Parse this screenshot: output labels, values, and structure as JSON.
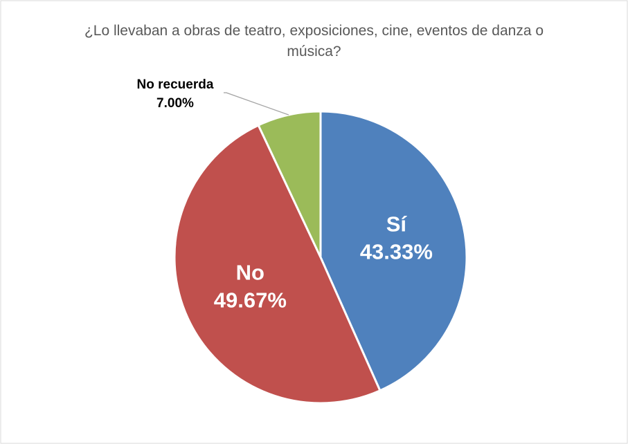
{
  "chart_data": {
    "type": "pie",
    "title": "¿Lo llevaban a obras de teatro, exposiciones, cine, eventos de danza o música?",
    "categories": [
      "Sí",
      "No",
      "No recuerda"
    ],
    "values": [
      43.33,
      49.67,
      7.0
    ],
    "value_labels": [
      "43.33%",
      "49.67%",
      "7.00%"
    ],
    "colors": [
      "#4f81bd",
      "#c0504d",
      "#9bbb59"
    ]
  }
}
